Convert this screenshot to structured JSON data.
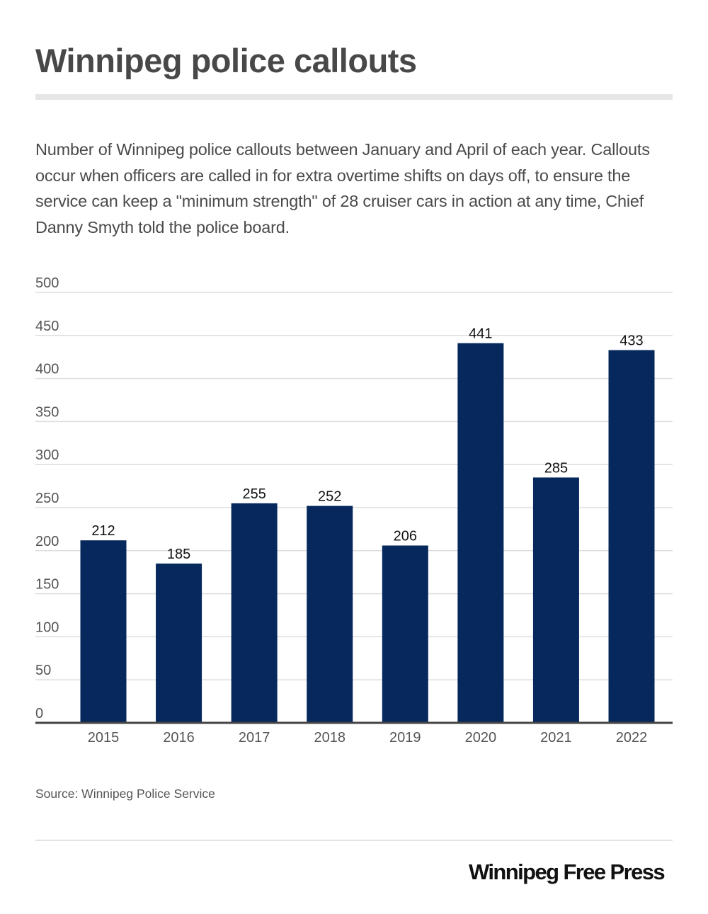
{
  "header": {
    "title": "Winnipeg police callouts",
    "description": "Number of Winnipeg police callouts between January and April of each year. Callouts occur when officers are called in for extra overtime shifts on days off, to ensure the service can keep a \"minimum strength\" of 28 cruiser cars in action at any time, Chief Danny Smyth told the police board."
  },
  "chart_data": {
    "type": "bar",
    "title": "Winnipeg police callouts",
    "xlabel": "",
    "ylabel": "",
    "categories": [
      "2015",
      "2016",
      "2017",
      "2018",
      "2019",
      "2020",
      "2021",
      "2022"
    ],
    "values": [
      212,
      185,
      255,
      252,
      206,
      441,
      285,
      433
    ],
    "ylim": [
      0,
      500
    ],
    "yticks": [
      0,
      50,
      100,
      150,
      200,
      250,
      300,
      350,
      400,
      450,
      500
    ],
    "grid": true,
    "legend": "none",
    "data_labels": true,
    "bar_color": "#06285c"
  },
  "footer": {
    "source": "Source: Winnipeg Police Service",
    "logo": "Winnipeg Free Press"
  }
}
